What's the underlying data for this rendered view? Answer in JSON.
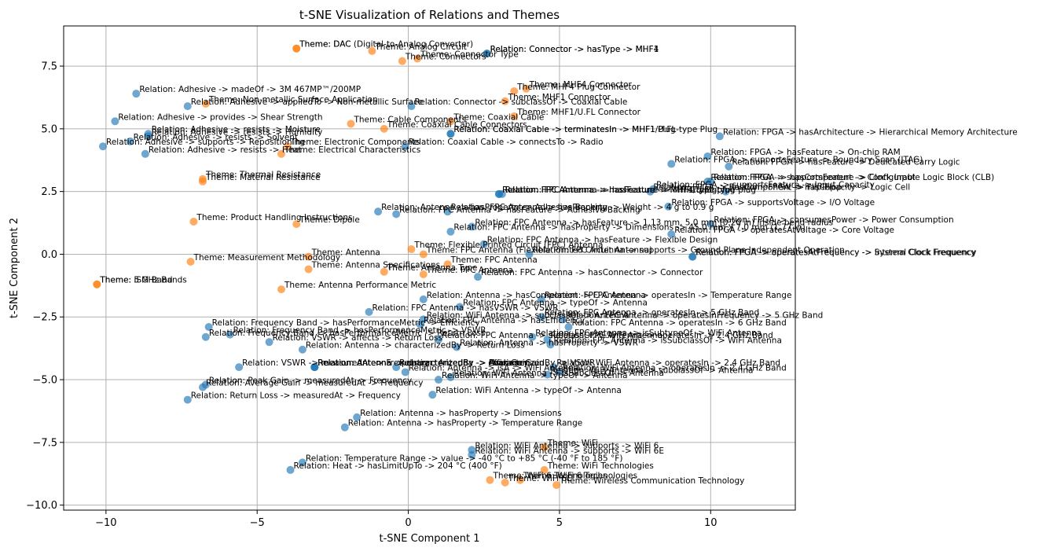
{
  "chart_data": {
    "type": "scatter",
    "title": "t-SNE Visualization of Relations and Themes",
    "xlabel": "t-SNE Component 1",
    "ylabel": "t-SNE Component 2",
    "xlim": [
      -11.4,
      12.8
    ],
    "ylim": [
      -10.2,
      9.1
    ],
    "xticks": [
      -10,
      -5,
      0,
      5,
      10
    ],
    "yticks": [
      -10.0,
      -7.5,
      -5.0,
      -2.5,
      0.0,
      2.5,
      5.0,
      7.5
    ],
    "ytick_labels": [
      "−10.0",
      "−7.5",
      "−5.0",
      "−2.5",
      "0.0",
      "2.5",
      "5.0",
      "7.5"
    ],
    "xtick_labels": [
      "−10",
      "−5",
      "0",
      "5",
      "10"
    ],
    "grid": true,
    "legend": "none",
    "colors": {
      "Relation": "#1f77b4",
      "Theme": "#ff7f0e"
    },
    "points": [
      {
        "x": -3.7,
        "y": 8.2,
        "label": "Theme: DAC",
        "cat": "Theme"
      },
      {
        "x": -3.7,
        "y": 8.2,
        "label": "Theme: DAC (Digital-to-Analog Converter)",
        "cat": "Theme"
      },
      {
        "x": -1.2,
        "y": 8.1,
        "label": "Theme: Analog Circuit",
        "cat": "Theme"
      },
      {
        "x": -0.2,
        "y": 7.7,
        "label": "Theme: Connectors",
        "cat": "Theme"
      },
      {
        "x": 0.3,
        "y": 7.8,
        "label": "Theme: Connector Type",
        "cat": "Theme"
      },
      {
        "x": 2.6,
        "y": 8.0,
        "label": "Relation: Connector -> hasType -> MHF1",
        "cat": "Relation"
      },
      {
        "x": 2.6,
        "y": 8.0,
        "label": "Relation: Connector -> hasType -> MHF4",
        "cat": "Relation"
      },
      {
        "x": -9.0,
        "y": 6.4,
        "label": "Relation: Adhesive -> madeOf -> 3M 467MP™/200MP",
        "cat": "Relation"
      },
      {
        "x": -7.3,
        "y": 5.9,
        "label": "Relation: Adhesive -> appliedTo -> Non-metallic Surface",
        "cat": "Relation"
      },
      {
        "x": -6.7,
        "y": 6.0,
        "label": "Theme: Non-metallic Surface Application",
        "cat": "Theme"
      },
      {
        "x": 0.1,
        "y": 5.9,
        "label": "Relation: Connector -> subclassOf -> Coaxial Cable",
        "cat": "Relation"
      },
      {
        "x": 3.5,
        "y": 6.5,
        "label": "Theme: MHF4 Plug Connector",
        "cat": "Theme"
      },
      {
        "x": 3.9,
        "y": 6.6,
        "label": "Theme: MHF4 Connector",
        "cat": "Theme"
      },
      {
        "x": 3.2,
        "y": 6.1,
        "label": "Theme: MHF1 Connector",
        "cat": "Theme"
      },
      {
        "x": 3.5,
        "y": 5.5,
        "label": "Theme: MHF1/U.FL Connector",
        "cat": "Theme"
      },
      {
        "x": -9.7,
        "y": 5.3,
        "label": "Relation: Adhesive -> provides -> Shear Strength",
        "cat": "Relation"
      },
      {
        "x": -1.9,
        "y": 5.2,
        "label": "Theme: Cable Components",
        "cat": "Theme"
      },
      {
        "x": -0.8,
        "y": 5.0,
        "label": "Theme: Coaxial Cable Connectors",
        "cat": "Theme"
      },
      {
        "x": 1.4,
        "y": 5.3,
        "label": "Theme: Coaxial Cable",
        "cat": "Theme"
      },
      {
        "x": -8.6,
        "y": 4.8,
        "label": "Relation: Adhesive -> resists -> Moisture",
        "cat": "Relation"
      },
      {
        "x": -8.6,
        "y": 4.7,
        "label": "Relation: Adhesive -> resists -> Humidity",
        "cat": "Relation"
      },
      {
        "x": 1.4,
        "y": 4.8,
        "label": "Relation: Coaxial Cable -> terminatesIn -> MHF1 Plug",
        "cat": "Relation"
      },
      {
        "x": 1.4,
        "y": 4.8,
        "label": "Relation: Coaxial Cable -> terminatesIn -> MHF1/U.FL-type Plug",
        "cat": "Relation"
      },
      {
        "x": 10.3,
        "y": 4.7,
        "label": "Relation: FPGA -> hasArchitecture -> Hierarchical Memory Architecture",
        "cat": "Relation"
      },
      {
        "x": -9.2,
        "y": 4.5,
        "label": "Relation: Adhesive -> resists -> Solvent",
        "cat": "Relation"
      },
      {
        "x": -10.1,
        "y": 4.3,
        "label": "Relation: Adhesive -> supports -> Repositioning",
        "cat": "Relation"
      },
      {
        "x": -0.1,
        "y": 4.3,
        "label": "Relation: Coaxial Cable -> connectsTo -> Radio",
        "cat": "Relation"
      },
      {
        "x": -4.0,
        "y": 4.3,
        "label": "Theme: Electronic Components",
        "cat": "Theme"
      },
      {
        "x": -8.7,
        "y": 4.0,
        "label": "Relation: Adhesive -> resists -> Heat",
        "cat": "Relation"
      },
      {
        "x": -4.2,
        "y": 4.0,
        "label": "Theme: Electrical Characteristics",
        "cat": "Theme"
      },
      {
        "x": 9.9,
        "y": 3.9,
        "label": "Relation: FPGA -> hasFeature -> On-chip RAM",
        "cat": "Relation"
      },
      {
        "x": 8.7,
        "y": 3.6,
        "label": "Relation: FPGA -> supportsFeature -> Boundary Scan (JTAG)",
        "cat": "Relation"
      },
      {
        "x": 10.6,
        "y": 3.5,
        "label": "Relation: FPGA -> hasFeature -> Dedicated Carry Logic",
        "cat": "Relation"
      },
      {
        "x": -6.8,
        "y": 3.0,
        "label": "Theme: Thermal Resistance",
        "cat": "Theme"
      },
      {
        "x": -6.8,
        "y": 2.9,
        "label": "Theme: Material Resistance",
        "cat": "Theme"
      },
      {
        "x": 9.9,
        "y": 2.9,
        "label": "Relation: FPGA -> supportsFeature -> Clock Input",
        "cat": "Relation"
      },
      {
        "x": 10.0,
        "y": 2.9,
        "label": "Relation: FPGA -> hasComponent -> Configurable Logic Block (CLB)",
        "cat": "Relation"
      },
      {
        "x": 8.1,
        "y": 2.6,
        "label": "Relation: FPGA -> supportsFeature -> Input Capacity",
        "cat": "Relation"
      },
      {
        "x": 8.0,
        "y": 2.5,
        "label": "Relation: FPGA -> hasComponent -> Flip-Flop",
        "cat": "Relation"
      },
      {
        "x": 10.5,
        "y": 2.5,
        "label": "Relation: FPGA -> hasCapacity -> Logic Cell",
        "cat": "Relation"
      },
      {
        "x": 3.0,
        "y": 2.4,
        "label": "Relation: FPC Antenna -> hasFeature -> MHF1/U.FL-type plug",
        "cat": "Relation"
      },
      {
        "x": 3.0,
        "y": 2.4,
        "label": "Relation: FPC Antenna -> hasFeature -> MHF4 type plug",
        "cat": "Relation"
      },
      {
        "x": 3.1,
        "y": 2.4,
        "label": "Relation: FPC Antenna -> hasFeature -> MHF1 plug",
        "cat": "Relation"
      },
      {
        "x": 8.6,
        "y": 1.9,
        "label": "Relation: FPGA -> supportsVoltage -> I/O Voltage",
        "cat": "Relation"
      },
      {
        "x": -1.0,
        "y": 1.7,
        "label": "Relation: Antenna -> hasProperty -> Adhesive Backing",
        "cat": "Relation"
      },
      {
        "x": -0.4,
        "y": 1.6,
        "label": "Relation: FPC Antenna -> hasFeature -> Adhesive Backing",
        "cat": "Relation"
      },
      {
        "x": 1.3,
        "y": 1.7,
        "label": "Relation: FPC Antenna -> hasProperty -> Weight -> 4 g to 0.9 g",
        "cat": "Relation"
      },
      {
        "x": -7.1,
        "y": 1.3,
        "label": "Theme: Product Handling Instructions",
        "cat": "Theme"
      },
      {
        "x": -3.7,
        "y": 1.2,
        "label": "Theme: Dipole",
        "cat": "Theme"
      },
      {
        "x": 10.0,
        "y": 1.2,
        "label": "Relation: FPGA -> consumesPower -> Power Consumption",
        "cat": "Relation"
      },
      {
        "x": 2.1,
        "y": 1.1,
        "label": "Relation: FPC Antenna -> hasFeature -> 1.13 mm, 5.0 mm (0.20 in) inside bend radius",
        "cat": "Relation"
      },
      {
        "x": 1.4,
        "y": 0.9,
        "label": "Relation: FPC Antenna -> hasProperty -> Dimensions -> 45.0 mm x 7.0 mm (1.77 in)",
        "cat": "Relation"
      },
      {
        "x": 8.7,
        "y": 0.8,
        "label": "Relation: FPGA -> operatesAtVoltage -> Core Voltage",
        "cat": "Relation"
      },
      {
        "x": 2.5,
        "y": 0.4,
        "label": "Relation: FPC Antenna -> hasFeature -> Flexible Design",
        "cat": "Relation"
      },
      {
        "x": 0.1,
        "y": 0.2,
        "label": "Theme: Flexible Printed Circuit (FPC) Antenna",
        "cat": "Theme"
      },
      {
        "x": 0.5,
        "y": 0.0,
        "label": "Theme: FPC Antenna (Flexible Printed Circuit Antenna)",
        "cat": "Theme"
      },
      {
        "x": 9.4,
        "y": -0.1,
        "label": "Relation: FPGA -> operatesAtFrequency -> Internal Clock Frequency",
        "cat": "Relation"
      },
      {
        "x": 9.4,
        "y": -0.1,
        "label": "Relation: FPGA -> operatesAtFrequency -> System Clock Frequency",
        "cat": "Relation"
      },
      {
        "x": 4.0,
        "y": 0.0,
        "label": "Relation: FPC Antenna -> supports -> Ground Plane Independent Operation",
        "cat": "Relation"
      },
      {
        "x": -3.3,
        "y": -0.1,
        "label": "Theme: Antenna",
        "cat": "Theme"
      },
      {
        "x": -7.2,
        "y": -0.3,
        "label": "Theme: Measurement Methodology",
        "cat": "Theme"
      },
      {
        "x": 1.3,
        "y": -0.4,
        "label": "Theme: FPC Antenna",
        "cat": "Theme"
      },
      {
        "x": -3.3,
        "y": -0.6,
        "label": "Theme: Antenna Specifications",
        "cat": "Theme"
      },
      {
        "x": -0.8,
        "y": -0.7,
        "label": "Theme: Antenna Type",
        "cat": "Theme"
      },
      {
        "x": 0.5,
        "y": -0.8,
        "label": "Theme: FPC Antenna",
        "cat": "Theme"
      },
      {
        "x": 2.3,
        "y": -0.9,
        "label": "Relation: FPC Antenna -> hasConnector -> Connector",
        "cat": "Relation"
      },
      {
        "x": -10.3,
        "y": -1.2,
        "label": "Theme: ISM Band",
        "cat": "Theme"
      },
      {
        "x": -10.3,
        "y": -1.2,
        "label": "Theme: 5 GHz Bands",
        "cat": "Theme"
      },
      {
        "x": -4.2,
        "y": -1.4,
        "label": "Theme: Antenna Performance Metric",
        "cat": "Theme"
      },
      {
        "x": 0.5,
        "y": -1.8,
        "label": "Relation: Antenna -> hasComponent -> FPC Antenna",
        "cat": "Relation"
      },
      {
        "x": 4.4,
        "y": -1.8,
        "label": "Relation: FPC Antenna -> operatesIn -> Temperature Range",
        "cat": "Relation"
      },
      {
        "x": 1.7,
        "y": -2.1,
        "label": "Relation: FPC Antenna -> typeOf -> Antenna",
        "cat": "Relation"
      },
      {
        "x": -1.3,
        "y": -2.3,
        "label": "Relation: FPC Antenna -> hasVSWR -> VSWR",
        "cat": "Relation"
      },
      {
        "x": 4.4,
        "y": -2.5,
        "label": "Relation: FPC Antenna -> operatesIn -> 5 GHz Band",
        "cat": "Relation"
      },
      {
        "x": 5.1,
        "y": -2.6,
        "label": "Relation: FPC Antenna -> operatesInFrequency -> 5 GHz Band",
        "cat": "Relation"
      },
      {
        "x": 0.5,
        "y": -2.6,
        "label": "Relation: WiFi Antenna -> subclassOf -> Antenna",
        "cat": "Relation"
      },
      {
        "x": -6.6,
        "y": -2.9,
        "label": "Relation: Frequency Band -> hasPerformanceMetric -> Efficiency",
        "cat": "Relation"
      },
      {
        "x": 0.4,
        "y": -2.8,
        "label": "Relation: FPC Antenna -> hasEfficiency",
        "cat": "Relation"
      },
      {
        "x": 5.3,
        "y": -2.9,
        "label": "Relation: FPC Antenna -> operatesIn -> 6 GHz Band",
        "cat": "Relation"
      },
      {
        "x": -5.9,
        "y": -3.2,
        "label": "Relation: Frequency Band -> hasPerformanceMetric -> VSWR",
        "cat": "Relation"
      },
      {
        "x": -6.7,
        "y": -3.3,
        "label": "Relation: Frequency Band -> hasPerformanceMetric -> Return Loss",
        "cat": "Relation"
      },
      {
        "x": 4.1,
        "y": -3.3,
        "label": "Relation: FPC Antenna -> isSubtypeOf -> WiFi Antenna",
        "cat": "Relation"
      },
      {
        "x": 4.6,
        "y": -3.4,
        "label": "Relation: FPC Antenna -> operatesIn -> 2.4 GHz Band",
        "cat": "Relation"
      },
      {
        "x": -4.6,
        "y": -3.5,
        "label": "Relation: VSWR -> affects -> Return Loss",
        "cat": "Relation"
      },
      {
        "x": 1.0,
        "y": -3.4,
        "label": "Relation: FPC Antenna -> subclassOf -> WiFi Antenna",
        "cat": "Relation"
      },
      {
        "x": 4.7,
        "y": -3.6,
        "label": "Relation: FPC Antenna -> isSubclassOf -> WiFi Antenna",
        "cat": "Relation"
      },
      {
        "x": -3.5,
        "y": -3.8,
        "label": "Relation: Antenna -> characterizedBy -> Return Loss",
        "cat": "Relation"
      },
      {
        "x": 1.6,
        "y": -3.7,
        "label": "Relation: Antenna -> hasProperty -> VSWR",
        "cat": "Relation"
      },
      {
        "x": -3.1,
        "y": -4.5,
        "label": "Relation: Antenna -> characterizedBy -> Efficiency",
        "cat": "Relation"
      },
      {
        "x": -3.1,
        "y": -4.5,
        "label": "Relation: Antenna -> characterizedBy -> Peak Gain",
        "cat": "Relation"
      },
      {
        "x": -3.1,
        "y": -4.5,
        "label": "Relation: Antenna -> characterizedBy -> Average Gain",
        "cat": "Relation"
      },
      {
        "x": -5.6,
        "y": -4.5,
        "label": "Relation: VSWR -> measuredAt -> Frequency",
        "cat": "Relation"
      },
      {
        "x": -0.4,
        "y": -4.5,
        "label": "Relation: Antenna -> characterizedBy -> VSWR",
        "cat": "Relation"
      },
      {
        "x": -0.1,
        "y": -4.7,
        "label": "Relation: Antenna -> isA -> WiFi Antenna",
        "cat": "Relation"
      },
      {
        "x": 4.8,
        "y": -4.5,
        "label": "Relation: WiFi Antenna -> operatesIn -> 2.4 GHz Band",
        "cat": "Relation"
      },
      {
        "x": 5.0,
        "y": -4.7,
        "label": "Relation: WiFi Antenna -> operatesIn -> 2.4 GHz Band",
        "cat": "Relation"
      },
      {
        "x": 4.6,
        "y": -4.8,
        "label": "Relation: WiFi Antenna -> subclassOf -> Antenna",
        "cat": "Relation"
      },
      {
        "x": 1.4,
        "y": -4.9,
        "label": "Relation: WiFi Antenna -> isSubclassOf -> Antenna",
        "cat": "Relation"
      },
      {
        "x": -6.7,
        "y": -5.2,
        "label": "Relation: Peak Gain -> measuredAt -> Frequency",
        "cat": "Relation"
      },
      {
        "x": -6.8,
        "y": -5.3,
        "label": "Relation: Average Gain -> measuredAt -> Frequency",
        "cat": "Relation"
      },
      {
        "x": 1.0,
        "y": -5.0,
        "label": "Relation: WiFi Antenna -> typeOf -> Antenna",
        "cat": "Relation"
      },
      {
        "x": 0.8,
        "y": -5.6,
        "label": "Relation: WiFi Antenna -> typeOf -> Antenna",
        "cat": "Relation"
      },
      {
        "x": -7.3,
        "y": -5.8,
        "label": "Relation: Return Loss -> measuredAt -> Frequency",
        "cat": "Relation"
      },
      {
        "x": -1.7,
        "y": -6.5,
        "label": "Relation: Antenna -> hasProperty -> Dimensions",
        "cat": "Relation"
      },
      {
        "x": -2.1,
        "y": -6.9,
        "label": "Relation: Antenna -> hasProperty -> Temperature Range",
        "cat": "Relation"
      },
      {
        "x": 4.5,
        "y": -7.7,
        "label": "Theme: WiFi",
        "cat": "Theme"
      },
      {
        "x": 2.1,
        "y": -7.8,
        "label": "Relation: WiFi Antenna -> supports -> WiFi 6",
        "cat": "Relation"
      },
      {
        "x": 2.1,
        "y": -8.0,
        "label": "Relation: WiFi Antenna -> supports -> WiFi 6E",
        "cat": "Relation"
      },
      {
        "x": -3.5,
        "y": -8.3,
        "label": "Relation: Temperature Range -> value -> -40 °C to +85 °C (-40 °F to 185 °F)",
        "cat": "Relation"
      },
      {
        "x": 4.5,
        "y": -8.6,
        "label": "Theme: WiFi Technologies",
        "cat": "Theme"
      },
      {
        "x": -3.9,
        "y": -8.6,
        "label": "Relation: Heat -> hasLimitUpTo -> 204 °C (400 °F)",
        "cat": "Relation"
      },
      {
        "x": 2.7,
        "y": -9.0,
        "label": "Theme: WiFi 6 Technologies",
        "cat": "Theme"
      },
      {
        "x": 3.2,
        "y": -9.1,
        "label": "Theme: WiFi 6E",
        "cat": "Theme"
      },
      {
        "x": 3.7,
        "y": -9.0,
        "label": "Theme: WiFi 6 Technologies",
        "cat": "Theme"
      },
      {
        "x": 4.9,
        "y": -9.2,
        "label": "Theme: Wireless Communication Technology",
        "cat": "Theme"
      }
    ]
  }
}
